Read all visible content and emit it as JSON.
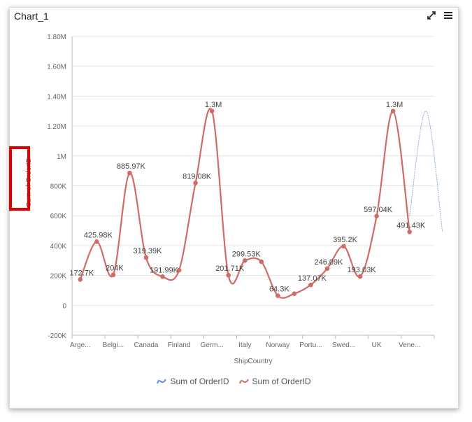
{
  "widget": {
    "title": "Chart_1",
    "icons": [
      "expand-icon",
      "menu-icon"
    ]
  },
  "colors": {
    "blue": "#5b8fd6",
    "red": "#d06b66",
    "grid": "#e4e4e4",
    "axis": "#666666"
  },
  "chart_data": {
    "type": "line",
    "curve": "spline",
    "xlabel": "ShipCountry",
    "ylabel": "Sum of OrderID",
    "ylim": [
      -200000,
      1800000
    ],
    "y_ticks": [
      {
        "v": -200000,
        "t": "-200K"
      },
      {
        "v": 0,
        "t": "0"
      },
      {
        "v": 200000,
        "t": "200K"
      },
      {
        "v": 400000,
        "t": "400K"
      },
      {
        "v": 600000,
        "t": "600K"
      },
      {
        "v": 800000,
        "t": "800K"
      },
      {
        "v": 1000000,
        "t": "1M"
      },
      {
        "v": 1200000,
        "t": "1.20M"
      },
      {
        "v": 1400000,
        "t": "1.40M"
      },
      {
        "v": 1600000,
        "t": "1.60M"
      },
      {
        "v": 1800000,
        "t": "1.80M"
      }
    ],
    "x_tick_labels": [
      "Arge...",
      "Belgi...",
      "Canada",
      "Finland",
      "Germ...",
      "Italy",
      "Norway",
      "Portu...",
      "Swed...",
      "UK",
      "Vene..."
    ],
    "grid": true,
    "legend": "bottom-center",
    "series": [
      {
        "name": "Sum of OrderID",
        "color": "#5b8fd6",
        "points": [
          {
            "i": 20,
            "y": 597040
          },
          {
            "i": 21,
            "y": 1300000
          },
          {
            "i": 22,
            "y": 491430
          }
        ]
      },
      {
        "name": "Sum of OrderID",
        "color": "#d06b66",
        "points": [
          {
            "i": 0,
            "y": 172700,
            "label": "172.7K"
          },
          {
            "i": 1,
            "y": 425980,
            "label": "425.98K"
          },
          {
            "i": 2,
            "y": 204000,
            "label": "204K"
          },
          {
            "i": 3,
            "y": 885970,
            "label": "885.97K"
          },
          {
            "i": 4,
            "y": 319390,
            "label": "319.39K"
          },
          {
            "i": 5,
            "y": 191990,
            "label": "191.99K"
          },
          {
            "i": 6,
            "y": 235000
          },
          {
            "i": 7,
            "y": 819080,
            "label": "819.08K"
          },
          {
            "i": 8,
            "y": 1300000,
            "label": "1.3M"
          },
          {
            "i": 9,
            "y": 201710,
            "label": "201.71K"
          },
          {
            "i": 10,
            "y": 299530,
            "label": "299.53K"
          },
          {
            "i": 11,
            "y": 292000
          },
          {
            "i": 12,
            "y": 64300,
            "label": "64.3K"
          },
          {
            "i": 13,
            "y": 78000
          },
          {
            "i": 14,
            "y": 137070,
            "label": "137.07K"
          },
          {
            "i": 15,
            "y": 246090,
            "label": "246.09K"
          },
          {
            "i": 16,
            "y": 395200,
            "label": "395.2K"
          },
          {
            "i": 17,
            "y": 193030,
            "label": "193.03K"
          },
          {
            "i": 18,
            "y": 597040,
            "label": "597.04K"
          },
          {
            "i": 19,
            "y": 1300000,
            "label": "1.3M"
          },
          {
            "i": 20,
            "y": 491430,
            "label": "491.43K"
          }
        ]
      }
    ]
  }
}
